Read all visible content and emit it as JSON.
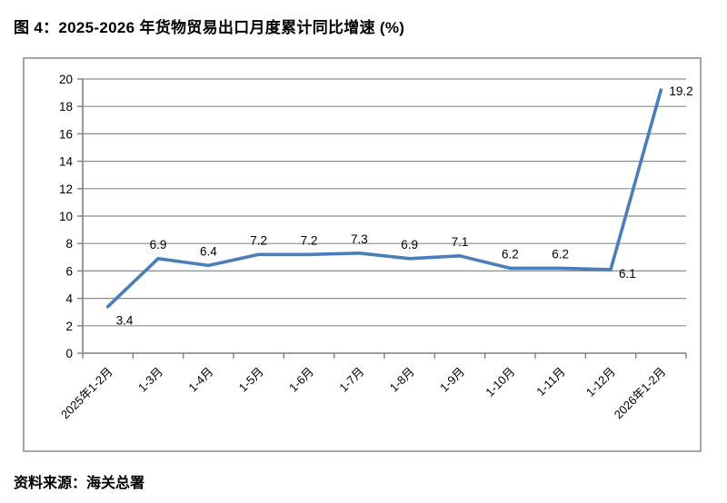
{
  "figure": {
    "title": "图 4：2025-2026 年货物贸易出口月度累计同比增速 (%)",
    "source": "资料来源：海关总署"
  },
  "chart_data": {
    "type": "line",
    "title": "2025-2026 年货物贸易出口月度累计同比增速 (%)",
    "categories": [
      "2025年1-2月",
      "1-3月",
      "1-4月",
      "1-5月",
      "1-6月",
      "1-7月",
      "1-8月",
      "1-9月",
      "1-10月",
      "1-11月",
      "1-12月",
      "2026年1-2月"
    ],
    "series": [
      {
        "name": "货物贸易出口月度累计同比增速",
        "values": [
          3.4,
          6.9,
          6.4,
          7.2,
          7.2,
          7.3,
          6.9,
          7.1,
          6.2,
          6.2,
          6.1,
          19.2
        ]
      }
    ],
    "data_labels": [
      "3.4",
      "6.9",
      "6.4",
      "7.2",
      "7.2",
      "7.3",
      "6.9",
      "7.1",
      "6.2",
      "6.2",
      "6.1",
      "19.2"
    ],
    "label_pos": [
      "below-right",
      "above",
      "above",
      "above",
      "above",
      "above",
      "above",
      "above",
      "above",
      "above",
      "below-right",
      "right"
    ],
    "xlabel": "",
    "ylabel": "",
    "ylim": [
      0,
      20
    ],
    "ytick_step": 2,
    "grid": true,
    "legend_position": "none",
    "x_label_rotation": -45,
    "colors": {
      "line": "#4a7ebb",
      "gridline": "#8c8c8c",
      "axis": "#7f7f7f",
      "box_border": "#a6a6a6",
      "text": "#000000"
    }
  }
}
